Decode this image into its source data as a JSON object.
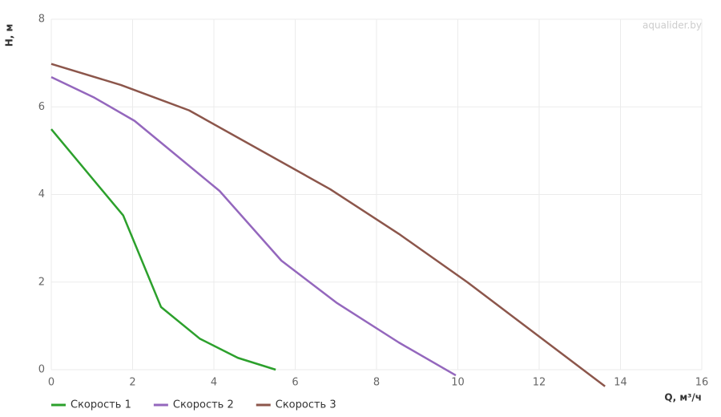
{
  "chart_data": {
    "type": "line",
    "watermark": "aqualider.by",
    "x_label": "Q, м³/ч",
    "y_label": "H, м",
    "xlim": [
      0,
      16
    ],
    "xticks": [
      0,
      2,
      4,
      6,
      8,
      10,
      12,
      14,
      16
    ],
    "ylim": [
      0,
      8
    ],
    "yticks": [
      0,
      2,
      4,
      6,
      8
    ],
    "grid": true,
    "legend": "bottom-left",
    "series": [
      {
        "name": "Скорость 1",
        "color": "#2ca02c",
        "x": [
          0,
          1.77,
          2.7,
          3.65,
          4.59,
          5.52
        ],
        "values": [
          5.49,
          3.52,
          1.43,
          0.71,
          0.27,
          0.0
        ]
      },
      {
        "name": "Скорость 2",
        "color": "#9467bd",
        "x": [
          0,
          1.06,
          2.05,
          4.14,
          5.66,
          7.03,
          8.55,
          9.95
        ],
        "values": [
          6.68,
          6.21,
          5.68,
          4.08,
          2.49,
          1.52,
          0.62,
          -0.13
        ]
      },
      {
        "name": "Скорость 3",
        "color": "#8c564b",
        "x": [
          0,
          1.71,
          3.39,
          6.86,
          8.55,
          10.23,
          13.62
        ],
        "values": [
          6.98,
          6.5,
          5.92,
          4.12,
          3.1,
          2.0,
          -0.38
        ]
      }
    ]
  }
}
